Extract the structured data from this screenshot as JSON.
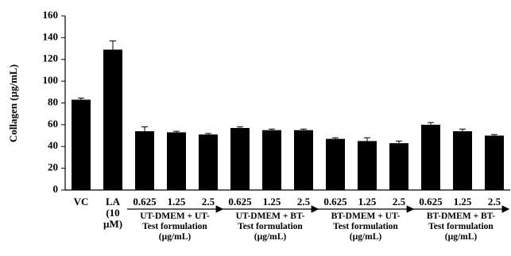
{
  "chart_data": {
    "type": "bar",
    "ylabel": "Collagen (µg/mL)",
    "categories": [
      "VC",
      "LA (10 µM)",
      "0.625",
      "1.25",
      "2.5",
      "0.625",
      "1.25",
      "2.5",
      "0.625",
      "1.25",
      "2.5",
      "0.625",
      "1.25",
      "2.5"
    ],
    "values": [
      83,
      129,
      54,
      53,
      51,
      57,
      55,
      55,
      47,
      45,
      43,
      60,
      54,
      50
    ],
    "errors": [
      1.5,
      8,
      4,
      1,
      1,
      1,
      1,
      1,
      1,
      3,
      2,
      2,
      2,
      1
    ],
    "groups": [
      "UT-DMEM + UT-\nTest formulation\n(µg/mL)",
      "UT-DMEM + BT-\nTest formulation\n(µg/mL)",
      "BT-DMEM + UT-\nTest formulation\n(µg/mL)",
      "BT-DMEM + BT-\nTest formulation\n(µg/mL)"
    ],
    "color": "#000000",
    "ylim": [
      0,
      160
    ],
    "yticks": [
      0,
      20,
      40,
      60,
      80,
      100,
      120,
      140,
      160
    ]
  }
}
